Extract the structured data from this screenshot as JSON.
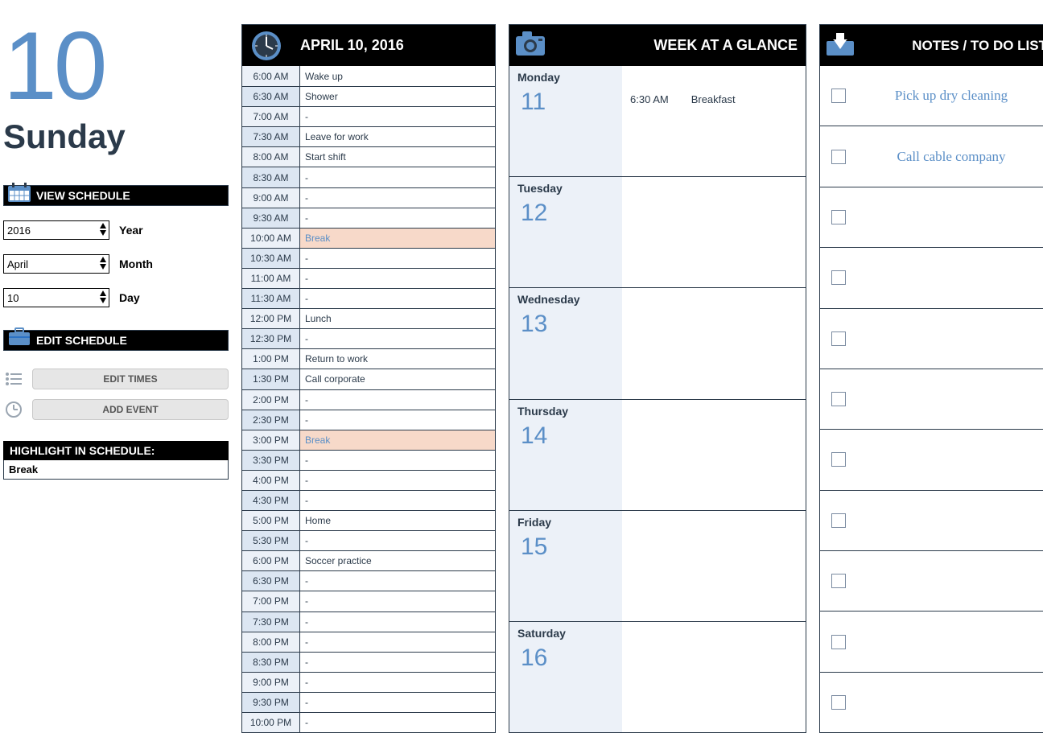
{
  "colors": {
    "accent": "#5b8fc7",
    "dark": "#2b3a4a",
    "black": "#000000",
    "timecell": "#dce6f2",
    "timecell_alt": "#ecf1f8",
    "highlight_bg": "#f7d9c9",
    "button_bg": "#e6e6e6",
    "note_text": "#5b8fc7"
  },
  "date": {
    "day_number": "10",
    "day_name": "Sunday",
    "full": "APRIL 10, 2016"
  },
  "view_schedule": {
    "header": "VIEW SCHEDULE",
    "year": {
      "value": "2016",
      "label": "Year"
    },
    "month": {
      "value": "April",
      "label": "Month"
    },
    "day": {
      "value": "10",
      "label": "Day"
    }
  },
  "edit_schedule": {
    "header": "EDIT SCHEDULE",
    "edit_times_label": "EDIT TIMES",
    "add_event_label": "ADD EVENT"
  },
  "highlight": {
    "header": "HIGHLIGHT IN SCHEDULE:",
    "value": "Break"
  },
  "schedule": {
    "rows": [
      {
        "time": "6:00 AM",
        "event": "Wake up",
        "hl": false
      },
      {
        "time": "6:30 AM",
        "event": "Shower",
        "hl": false
      },
      {
        "time": "7:00 AM",
        "event": "-",
        "hl": false
      },
      {
        "time": "7:30 AM",
        "event": "Leave for work",
        "hl": false
      },
      {
        "time": "8:00 AM",
        "event": "Start shift",
        "hl": false
      },
      {
        "time": "8:30 AM",
        "event": "-",
        "hl": false
      },
      {
        "time": "9:00 AM",
        "event": "-",
        "hl": false
      },
      {
        "time": "9:30 AM",
        "event": "-",
        "hl": false
      },
      {
        "time": "10:00 AM",
        "event": "Break",
        "hl": true
      },
      {
        "time": "10:30 AM",
        "event": "-",
        "hl": false
      },
      {
        "time": "11:00 AM",
        "event": "-",
        "hl": false
      },
      {
        "time": "11:30 AM",
        "event": "-",
        "hl": false
      },
      {
        "time": "12:00 PM",
        "event": "Lunch",
        "hl": false
      },
      {
        "time": "12:30 PM",
        "event": "-",
        "hl": false
      },
      {
        "time": "1:00 PM",
        "event": "Return to work",
        "hl": false
      },
      {
        "time": "1:30 PM",
        "event": "Call corporate",
        "hl": false
      },
      {
        "time": "2:00 PM",
        "event": "-",
        "hl": false
      },
      {
        "time": "2:30 PM",
        "event": "-",
        "hl": false
      },
      {
        "time": "3:00 PM",
        "event": "Break",
        "hl": true
      },
      {
        "time": "3:30 PM",
        "event": "-",
        "hl": false
      },
      {
        "time": "4:00 PM",
        "event": "-",
        "hl": false
      },
      {
        "time": "4:30 PM",
        "event": "-",
        "hl": false
      },
      {
        "time": "5:00 PM",
        "event": "Home",
        "hl": false
      },
      {
        "time": "5:30 PM",
        "event": "-",
        "hl": false
      },
      {
        "time": "6:00 PM",
        "event": "Soccer practice",
        "hl": false
      },
      {
        "time": "6:30 PM",
        "event": "-",
        "hl": false
      },
      {
        "time": "7:00 PM",
        "event": "-",
        "hl": false
      },
      {
        "time": "7:30 PM",
        "event": "-",
        "hl": false
      },
      {
        "time": "8:00 PM",
        "event": "-",
        "hl": false
      },
      {
        "time": "8:30 PM",
        "event": "-",
        "hl": false
      },
      {
        "time": "9:00 PM",
        "event": "-",
        "hl": false
      },
      {
        "time": "9:30 PM",
        "event": "-",
        "hl": false
      },
      {
        "time": "10:00 PM",
        "event": "-",
        "hl": false
      }
    ]
  },
  "week": {
    "header": "WEEK AT A GLANCE",
    "days": [
      {
        "name": "Monday",
        "num": "11",
        "evt_time": "6:30 AM",
        "evt_text": "Breakfast"
      },
      {
        "name": "Tuesday",
        "num": "12",
        "evt_time": "",
        "evt_text": ""
      },
      {
        "name": "Wednesday",
        "num": "13",
        "evt_time": "",
        "evt_text": ""
      },
      {
        "name": "Thursday",
        "num": "14",
        "evt_time": "",
        "evt_text": ""
      },
      {
        "name": "Friday",
        "num": "15",
        "evt_time": "",
        "evt_text": ""
      },
      {
        "name": "Saturday",
        "num": "16",
        "evt_time": "",
        "evt_text": ""
      }
    ]
  },
  "notes": {
    "header": "NOTES / TO DO LIST",
    "items": [
      {
        "text": "Pick up dry cleaning"
      },
      {
        "text": "Call cable company"
      },
      {
        "text": ""
      },
      {
        "text": ""
      },
      {
        "text": ""
      },
      {
        "text": ""
      },
      {
        "text": ""
      },
      {
        "text": ""
      },
      {
        "text": ""
      },
      {
        "text": ""
      },
      {
        "text": ""
      }
    ]
  }
}
